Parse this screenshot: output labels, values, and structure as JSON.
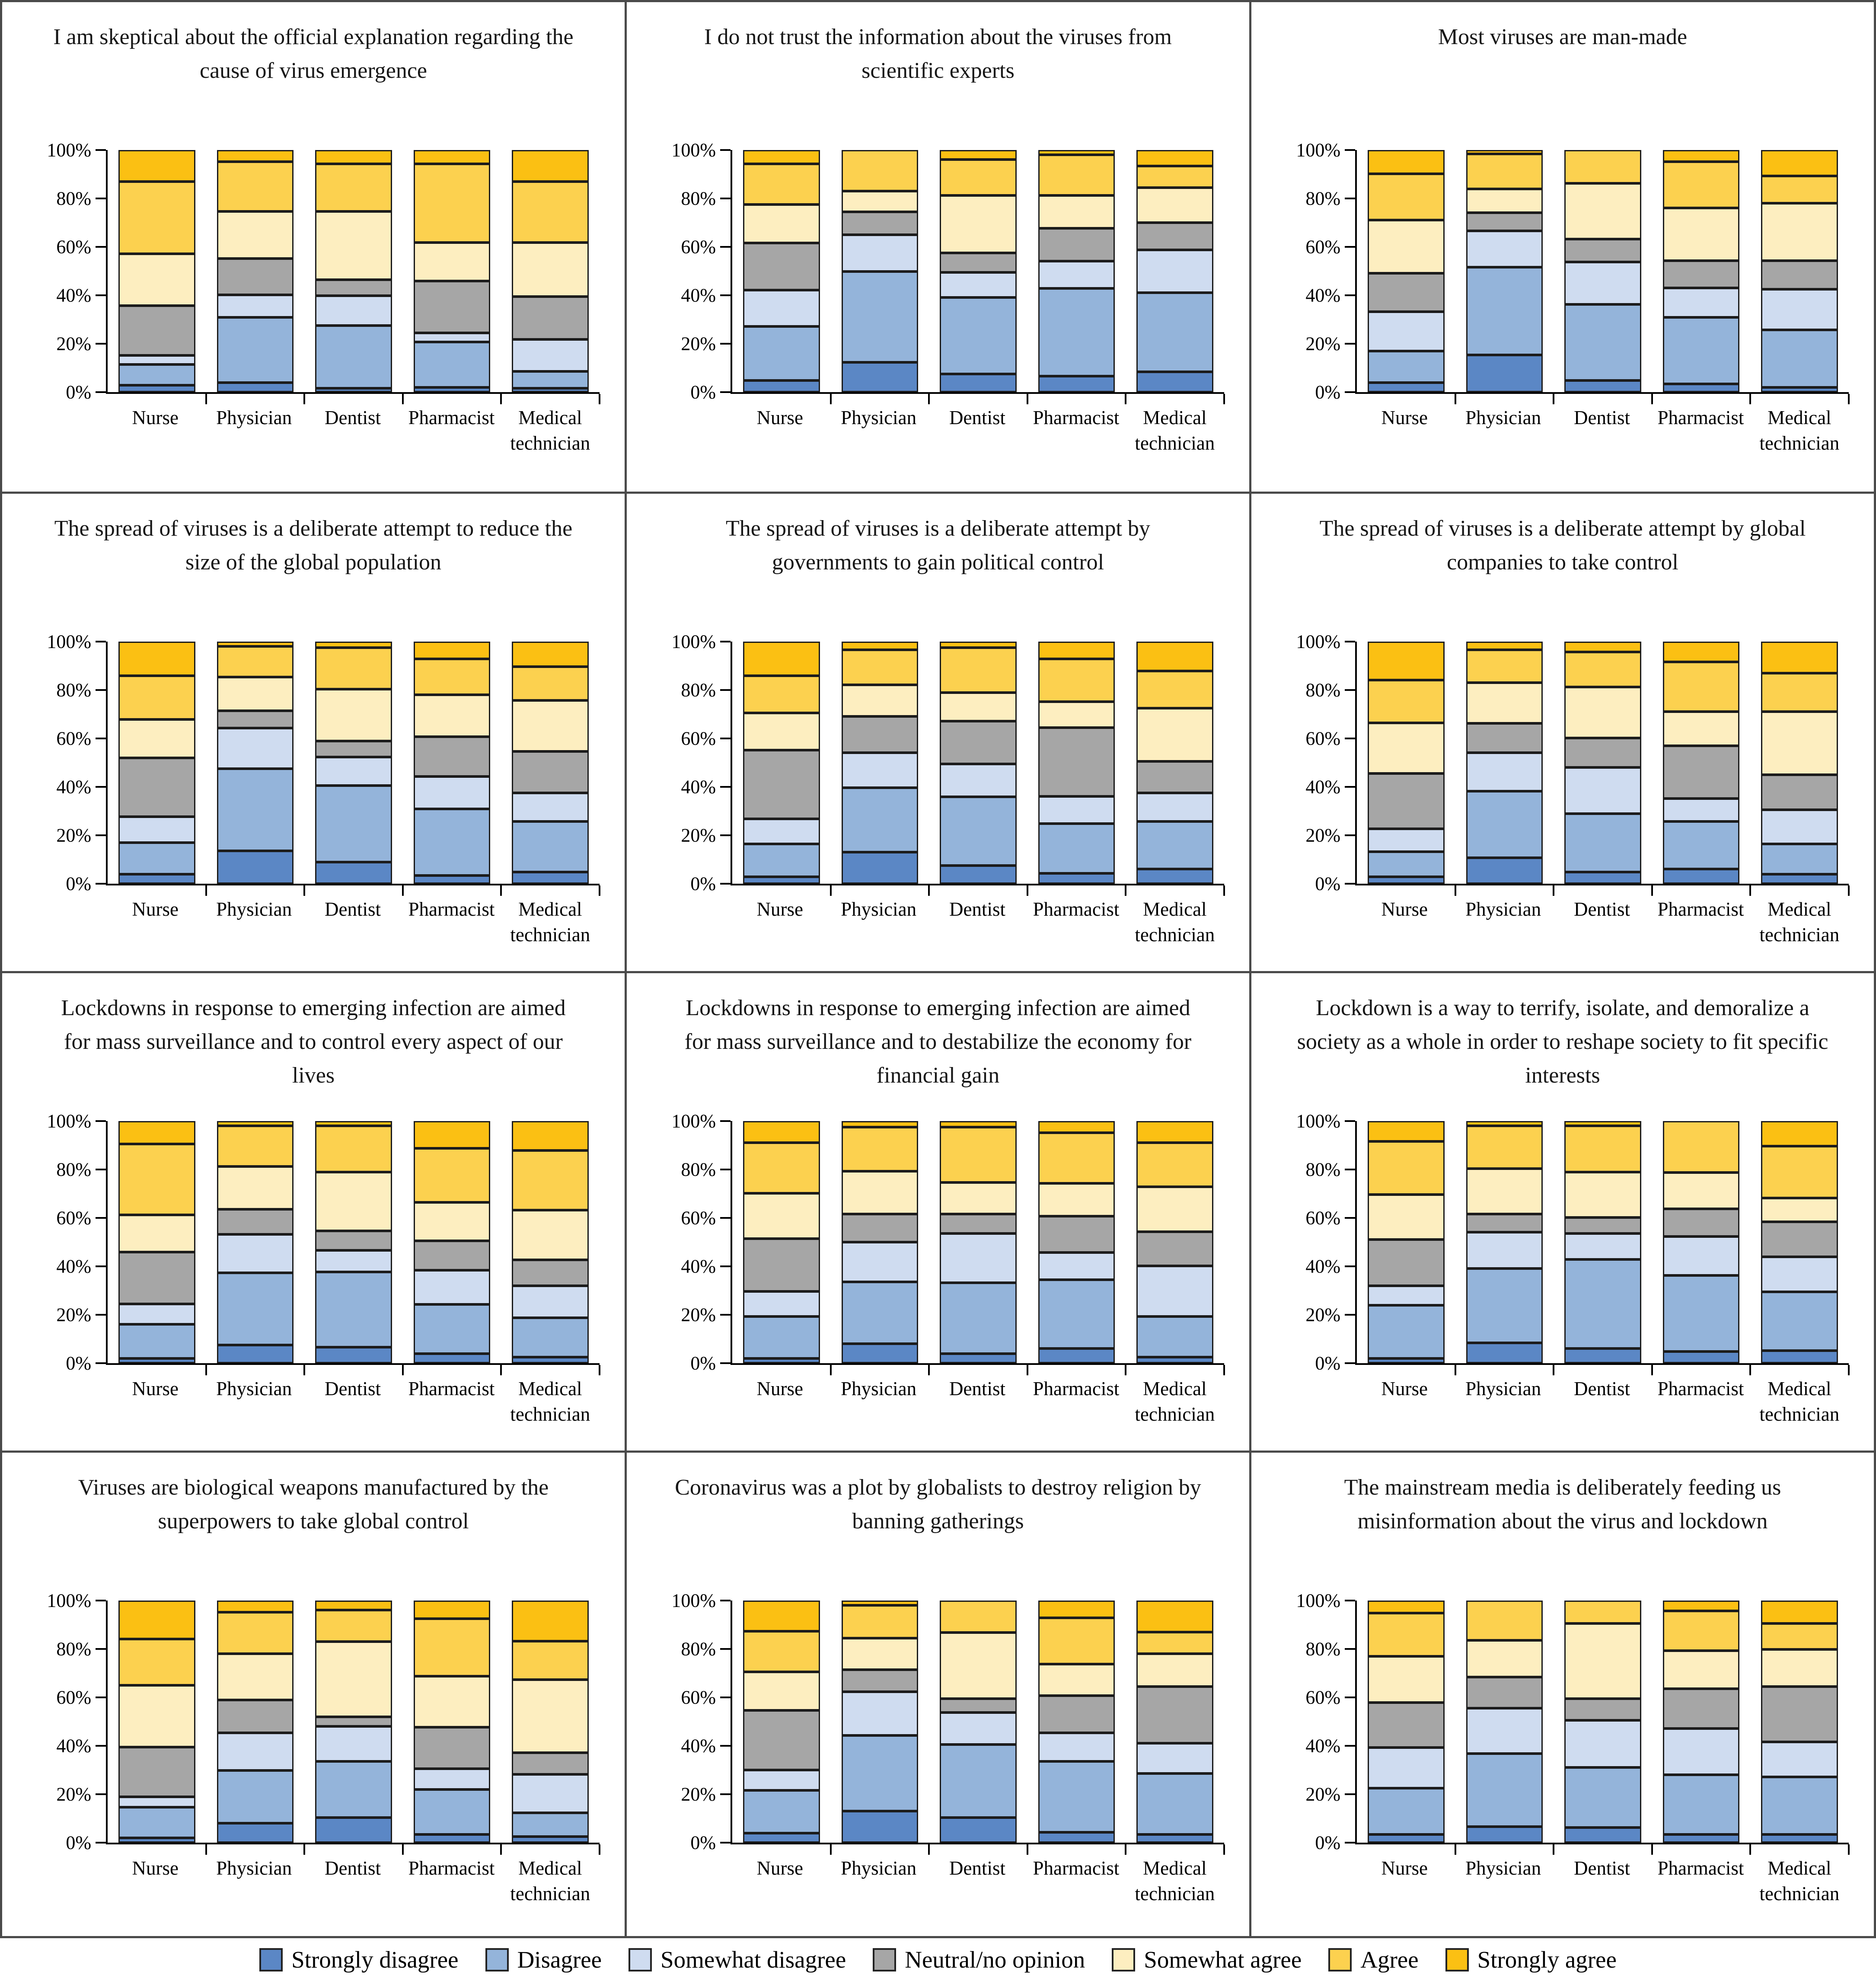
{
  "categories": [
    "Nurse",
    "Physician",
    "Dentist",
    "Pharmacist",
    "Medical technician"
  ],
  "series_order": [
    "Strongly disagree",
    "Disagree",
    "Somewhat disagree",
    "Neutral/no opinion",
    "Somewhat agree",
    "Agree",
    "Strongly agree"
  ],
  "y_axis": {
    "ticks": [
      "0%",
      "20%",
      "40%",
      "60%",
      "80%",
      "100%"
    ],
    "range": [
      0,
      100
    ],
    "grid": false
  },
  "legend": {
    "position": "bottom",
    "items": [
      {
        "label": "Strongly disagree",
        "color": "#5b87c5"
      },
      {
        "label": "Disagree",
        "color": "#94b4da"
      },
      {
        "label": "Somewhat disagree",
        "color": "#cfdcf0"
      },
      {
        "label": "Neutral/no opinion",
        "color": "#a6a6a6"
      },
      {
        "label": "Somewhat agree",
        "color": "#fdeec0"
      },
      {
        "label": "Agree",
        "color": "#fcd14f"
      },
      {
        "label": "Strongly agree",
        "color": "#fbc013"
      }
    ]
  },
  "chart_data": [
    {
      "type": "bar",
      "stacked": true,
      "units": "%",
      "title": "I am skeptical about the official explanation regarding the cause of virus emergence",
      "series": [
        {
          "name": "Strongly disagree",
          "values": [
            2,
            3,
            0.5,
            1,
            0.5
          ]
        },
        {
          "name": "Disagree",
          "values": [
            8,
            28,
            27,
            19,
            6.5
          ]
        },
        {
          "name": "Somewhat disagree",
          "values": [
            3,
            9,
            12,
            3,
            13
          ]
        },
        {
          "name": "Neutral/no opinion",
          "values": [
            21,
            15,
            6,
            22,
            18
          ]
        },
        {
          "name": "Somewhat agree",
          "values": [
            22,
            20,
            29.5,
            16,
            23
          ]
        },
        {
          "name": "Agree",
          "values": [
            31,
            21,
            20,
            34,
            26
          ]
        },
        {
          "name": "Strongly agree",
          "values": [
            13,
            4,
            5,
            5,
            13
          ]
        }
      ]
    },
    {
      "type": "bar",
      "stacked": true,
      "units": "%",
      "title": "I do not trust the information about the viruses from scientific experts",
      "series": [
        {
          "name": "Strongly disagree",
          "values": [
            4,
            12,
            7,
            6,
            8
          ]
        },
        {
          "name": "Disagree",
          "values": [
            23,
            39,
            33,
            38,
            34
          ]
        },
        {
          "name": "Somewhat disagree",
          "values": [
            15,
            15,
            10,
            11,
            18
          ]
        },
        {
          "name": "Neutral/no opinion",
          "values": [
            20,
            9,
            7.5,
            13.5,
            11
          ]
        },
        {
          "name": "Somewhat agree",
          "values": [
            16,
            8,
            24.5,
            13.5,
            14.5
          ]
        },
        {
          "name": "Agree",
          "values": [
            17,
            17,
            15,
            17,
            8.5
          ]
        },
        {
          "name": "Strongly agree",
          "values": [
            5,
            0,
            3,
            1,
            6
          ]
        }
      ]
    },
    {
      "type": "bar",
      "stacked": true,
      "units": "%",
      "title": "Most viruses are man-made",
      "series": [
        {
          "name": "Strongly disagree",
          "values": [
            3,
            15.5,
            4,
            2.5,
            1
          ]
        },
        {
          "name": "Disagree",
          "values": [
            13,
            38,
            32.5,
            28.5,
            24.5
          ]
        },
        {
          "name": "Somewhat disagree",
          "values": [
            16.5,
            15,
            17.5,
            12,
            17
          ]
        },
        {
          "name": "Neutral/no opinion",
          "values": [
            16,
            7,
            9,
            11,
            11.5
          ]
        },
        {
          "name": "Somewhat agree",
          "values": [
            22.5,
            9.5,
            23.5,
            22.5,
            24.5
          ]
        },
        {
          "name": "Agree",
          "values": [
            19.5,
            14.5,
            13.5,
            19.5,
            11
          ]
        },
        {
          "name": "Strongly agree",
          "values": [
            9.5,
            0.5,
            0,
            4,
            10.5
          ]
        }
      ]
    },
    {
      "type": "bar",
      "stacked": true,
      "units": "%",
      "title": "The spread of viruses is a deliberate attempt to reduce the size of the global population",
      "series": [
        {
          "name": "Strongly disagree",
          "values": [
            3,
            13.5,
            8.5,
            2.5,
            4
          ]
        },
        {
          "name": "Disagree",
          "values": [
            13,
            35.5,
            33,
            28.5,
            21.5
          ]
        },
        {
          "name": "Somewhat disagree",
          "values": [
            10.5,
            17,
            11.5,
            13.5,
            11.5
          ]
        },
        {
          "name": "Neutral/no opinion",
          "values": [
            25,
            6.5,
            6,
            16.5,
            17.5
          ]
        },
        {
          "name": "Somewhat agree",
          "values": [
            16,
            14,
            22,
            17.5,
            21.5
          ]
        },
        {
          "name": "Agree",
          "values": [
            18.5,
            12.5,
            17.5,
            15,
            14
          ]
        },
        {
          "name": "Strongly agree",
          "values": [
            14,
            1,
            1.5,
            6.5,
            10
          ]
        }
      ]
    },
    {
      "type": "bar",
      "stacked": true,
      "units": "%",
      "title": "The spread of viruses is a deliberate attempt by governments to gain political control",
      "series": [
        {
          "name": "Strongly disagree",
          "values": [
            2,
            13,
            7,
            3.5,
            5.5
          ]
        },
        {
          "name": "Disagree",
          "values": [
            13.5,
            27.5,
            29.5,
            21,
            20
          ]
        },
        {
          "name": "Somewhat disagree",
          "values": [
            10,
            14.5,
            13.5,
            11,
            11.5
          ]
        },
        {
          "name": "Neutral/no opinion",
          "values": [
            29.5,
            15,
            18,
            29.5,
            13
          ]
        },
        {
          "name": "Somewhat agree",
          "values": [
            15.5,
            13,
            11.5,
            10.5,
            22.5
          ]
        },
        {
          "name": "Agree",
          "values": [
            15.5,
            14.5,
            19,
            18,
            15.5
          ]
        },
        {
          "name": "Strongly agree",
          "values": [
            14,
            2.5,
            1.5,
            6.5,
            12
          ]
        }
      ]
    },
    {
      "type": "bar",
      "stacked": true,
      "units": "%",
      "title": "The spread of viruses is a deliberate attempt by global companies to take control",
      "series": [
        {
          "name": "Strongly disagree",
          "values": [
            2,
            10.5,
            4,
            5.5,
            3
          ]
        },
        {
          "name": "Disagree",
          "values": [
            10,
            28.5,
            25,
            20,
            12.5
          ]
        },
        {
          "name": "Somewhat disagree",
          "values": [
            9,
            16,
            19.5,
            9,
            14
          ]
        },
        {
          "name": "Neutral/no opinion",
          "values": [
            23.5,
            12,
            12,
            22.5,
            14.5
          ]
        },
        {
          "name": "Somewhat agree",
          "values": [
            21.5,
            17,
            21.5,
            14,
            27
          ]
        },
        {
          "name": "Agree",
          "values": [
            18,
            13.5,
            14.5,
            21,
            16
          ]
        },
        {
          "name": "Strongly agree",
          "values": [
            16,
            2.5,
            3.5,
            8,
            13
          ]
        }
      ]
    },
    {
      "type": "bar",
      "stacked": true,
      "units": "%",
      "title": "Lockdowns in response to emerging infection are aimed for mass surveillance and to control every aspect of our lives",
      "series": [
        {
          "name": "Strongly disagree",
          "values": [
            1,
            7,
            6,
            3,
            1.5
          ]
        },
        {
          "name": "Disagree",
          "values": [
            14,
            31,
            32.5,
            21,
            16.5
          ]
        },
        {
          "name": "Somewhat disagree",
          "values": [
            8,
            16,
            8.5,
            14,
            13
          ]
        },
        {
          "name": "Neutral/no opinion",
          "values": [
            22,
            10,
            7.5,
            12,
            10.5
          ]
        },
        {
          "name": "Somewhat agree",
          "values": [
            15.5,
            18,
            25,
            16,
            21
          ]
        },
        {
          "name": "Agree",
          "values": [
            30.5,
            17,
            19.5,
            23,
            25.5
          ]
        },
        {
          "name": "Strongly agree",
          "values": [
            9,
            1,
            1,
            11,
            12
          ]
        }
      ]
    },
    {
      "type": "bar",
      "stacked": true,
      "units": "%",
      "title": "Lockdowns in response to emerging infection are aimed for mass surveillance and to destabilize the economy for financial gain",
      "series": [
        {
          "name": "Strongly disagree",
          "values": [
            1,
            7.5,
            3,
            5.5,
            1.5
          ]
        },
        {
          "name": "Disagree",
          "values": [
            17.5,
            26.5,
            30.5,
            29.5,
            17
          ]
        },
        {
          "name": "Somewhat disagree",
          "values": [
            10,
            16.5,
            21,
            11,
            21.5
          ]
        },
        {
          "name": "Neutral/no opinion",
          "values": [
            22.5,
            11.5,
            7.5,
            15,
            14
          ]
        },
        {
          "name": "Somewhat agree",
          "values": [
            19,
            18,
            13,
            13.5,
            19
          ]
        },
        {
          "name": "Agree",
          "values": [
            21.5,
            18.5,
            23.5,
            21.5,
            18.5
          ]
        },
        {
          "name": "Strongly agree",
          "values": [
            8.5,
            1.5,
            1.5,
            4,
            8.5
          ]
        }
      ]
    },
    {
      "type": "bar",
      "stacked": true,
      "units": "%",
      "title": "Lockdown is a way to terrify, isolate, and demoralize a society as a whole in order to reshape society to fit specific interests",
      "series": [
        {
          "name": "Strongly disagree",
          "values": [
            1,
            8,
            5.5,
            4,
            4.5
          ]
        },
        {
          "name": "Disagree",
          "values": [
            22.5,
            32,
            38.5,
            32.5,
            25
          ]
        },
        {
          "name": "Somewhat disagree",
          "values": [
            7.5,
            15,
            10.5,
            16,
            14.5
          ]
        },
        {
          "name": "Neutral/no opinion",
          "values": [
            19.5,
            7,
            6,
            11,
            14.5
          ]
        },
        {
          "name": "Somewhat agree",
          "values": [
            19,
            19,
            19,
            15,
            9.5
          ]
        },
        {
          "name": "Agree",
          "values": [
            22.5,
            18,
            19.5,
            21.5,
            22
          ]
        },
        {
          "name": "Strongly agree",
          "values": [
            8,
            1,
            1,
            0,
            10
          ]
        }
      ]
    },
    {
      "type": "bar",
      "stacked": true,
      "units": "%",
      "title": "Viruses are biological weapons manufactured by the superpowers to take global control",
      "series": [
        {
          "name": "Strongly disagree",
          "values": [
            1,
            7.5,
            10,
            2.5,
            1.5
          ]
        },
        {
          "name": "Disagree",
          "values": [
            12.5,
            22.5,
            24,
            19,
            9.5
          ]
        },
        {
          "name": "Somewhat disagree",
          "values": [
            3.5,
            15.5,
            14.5,
            8,
            16
          ]
        },
        {
          "name": "Neutral/no opinion",
          "values": [
            21,
            13.5,
            3,
            17.5,
            8.5
          ]
        },
        {
          "name": "Somewhat agree",
          "values": [
            26.5,
            19.5,
            32.5,
            21.5,
            31.5
          ]
        },
        {
          "name": "Agree",
          "values": [
            19.5,
            17.5,
            13,
            24.5,
            16
          ]
        },
        {
          "name": "Strongly agree",
          "values": [
            16,
            4,
            3,
            7,
            17
          ]
        }
      ]
    },
    {
      "type": "bar",
      "stacked": true,
      "units": "%",
      "title": "Coronavirus was a plot by globalists to destroy religion by banning gatherings",
      "series": [
        {
          "name": "Strongly disagree",
          "values": [
            3,
            13,
            10,
            3.5,
            2.5
          ]
        },
        {
          "name": "Disagree",
          "values": [
            18,
            32.5,
            31,
            30.5,
            26
          ]
        },
        {
          "name": "Somewhat disagree",
          "values": [
            8,
            18.5,
            13,
            11.5,
            12.5
          ]
        },
        {
          "name": "Neutral/no opinion",
          "values": [
            25.5,
            8.5,
            5,
            15.5,
            24
          ]
        },
        {
          "name": "Somewhat agree",
          "values": [
            16,
            13,
            28,
            13,
            13.5
          ]
        },
        {
          "name": "Agree",
          "values": [
            17,
            13.5,
            13,
            19.5,
            8.5
          ]
        },
        {
          "name": "Strongly agree",
          "values": [
            12.5,
            1,
            0,
            6.5,
            13
          ]
        }
      ]
    },
    {
      "type": "bar",
      "stacked": true,
      "units": "%",
      "title": "The mainstream media is deliberately feeding us misinformation about the virus and lockdown",
      "series": [
        {
          "name": "Strongly disagree",
          "values": [
            2.5,
            6,
            5.5,
            2.5,
            2.5
          ]
        },
        {
          "name": "Disagree",
          "values": [
            19.5,
            31,
            25.5,
            25.5,
            24.5
          ]
        },
        {
          "name": "Somewhat disagree",
          "values": [
            17,
            19,
            19.5,
            19.5,
            14.5
          ]
        },
        {
          "name": "Neutral/no opinion",
          "values": [
            19,
            12.5,
            8.5,
            16.5,
            23.5
          ]
        },
        {
          "name": "Somewhat agree",
          "values": [
            19.5,
            15,
            32,
            16,
            15.5
          ]
        },
        {
          "name": "Agree",
          "values": [
            18,
            16.5,
            9,
            16.5,
            10.5
          ]
        },
        {
          "name": "Strongly agree",
          "values": [
            4.5,
            0,
            0,
            3.5,
            9
          ]
        }
      ]
    }
  ]
}
